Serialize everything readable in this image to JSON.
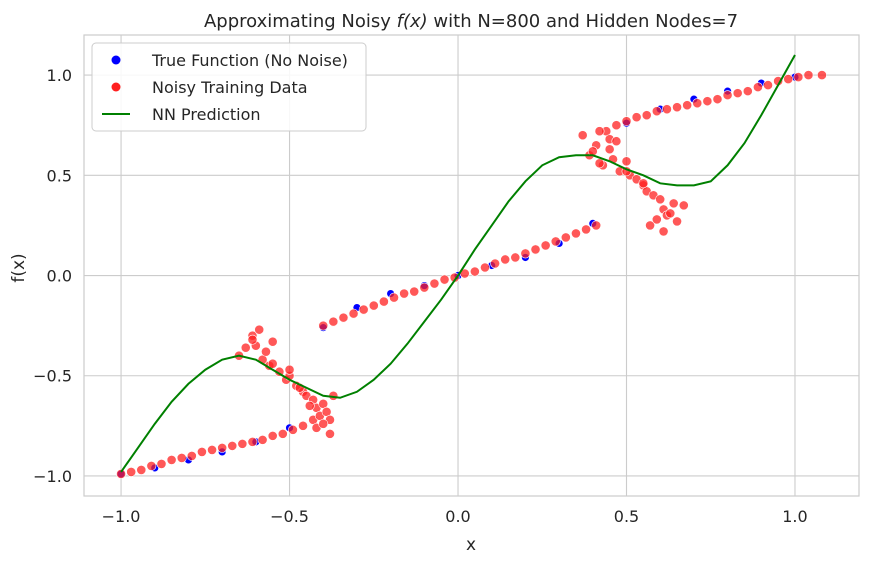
{
  "chart_data": {
    "type": "scatter",
    "title_prefix": "Approximating Noisy ",
    "title_math": "f(x)",
    "title_suffix": " with N=800 and Hidden Nodes=7",
    "xlabel": "x",
    "ylabel": "f(x)",
    "xlim": [
      -1.11,
      1.19
    ],
    "ylim": [
      -1.1,
      1.2
    ],
    "xticks": [
      -1.0,
      -0.5,
      0.0,
      0.5,
      1.0
    ],
    "xtick_labels": [
      "−1.0",
      "−0.5",
      "0.0",
      "0.5",
      "1.0"
    ],
    "yticks": [
      -1.0,
      -0.5,
      0.0,
      0.5,
      1.0
    ],
    "ytick_labels": [
      "−1.0",
      "−0.5",
      "0.0",
      "0.5",
      "1.0"
    ],
    "grid": true,
    "legend_position": "top-left",
    "legend": [
      {
        "label": "True Function (No Noise)",
        "kind": "dot",
        "color": "#0000ff"
      },
      {
        "label": "Noisy Training Data",
        "kind": "dot",
        "color": "#ff2020"
      },
      {
        "label": "NN Prediction",
        "kind": "line",
        "color": "#008000"
      }
    ],
    "series": [
      {
        "name": "True Function (No Noise)",
        "kind": "scatter",
        "color": "#0000ff",
        "x": [
          -1.0,
          -0.9,
          -0.8,
          -0.7,
          -0.6,
          -0.5,
          -0.4,
          -0.3,
          -0.2,
          -0.1,
          0.0,
          0.1,
          0.2,
          0.3,
          0.4,
          0.5,
          0.6,
          0.7,
          0.8,
          0.9,
          1.0
        ],
        "y": [
          -0.99,
          -0.96,
          -0.92,
          -0.88,
          -0.83,
          -0.76,
          -0.26,
          -0.16,
          -0.09,
          -0.05,
          0.0,
          0.05,
          0.09,
          0.16,
          0.26,
          0.76,
          0.83,
          0.88,
          0.92,
          0.96,
          0.99
        ]
      },
      {
        "name": "Noisy Training Data",
        "kind": "scatter",
        "color": "#ff2020",
        "x": [
          -1.0,
          -0.97,
          -0.94,
          -0.91,
          -0.88,
          -0.85,
          -0.82,
          -0.79,
          -0.76,
          -0.73,
          -0.7,
          -0.67,
          -0.64,
          -0.61,
          -0.58,
          -0.55,
          -0.52,
          -0.49,
          -0.46,
          -0.43,
          -0.4,
          -0.37,
          -0.34,
          -0.31,
          -0.28,
          -0.25,
          -0.22,
          -0.19,
          -0.16,
          -0.13,
          -0.1,
          -0.07,
          -0.04,
          -0.01,
          0.02,
          0.05,
          0.08,
          0.11,
          0.14,
          0.17,
          0.2,
          0.23,
          0.26,
          0.29,
          0.32,
          0.35,
          0.38,
          0.41,
          0.44,
          0.47,
          0.5,
          0.53,
          0.56,
          0.59,
          0.62,
          0.65,
          0.68,
          0.71,
          0.74,
          0.77,
          0.8,
          0.83,
          0.86,
          0.89,
          0.92,
          0.95,
          0.98,
          1.01,
          1.04,
          1.08,
          -0.65,
          -0.63,
          -0.61,
          -0.6,
          -0.58,
          -0.56,
          -0.55,
          -0.53,
          -0.51,
          -0.5,
          -0.48,
          -0.46,
          -0.45,
          -0.43,
          -0.42,
          -0.41,
          -0.4,
          -0.39,
          -0.38,
          -0.37,
          -0.61,
          -0.59,
          -0.57,
          -0.55,
          -0.5,
          -0.47,
          -0.44,
          -0.42,
          -0.4,
          -0.38,
          0.37,
          0.39,
          0.41,
          0.42,
          0.43,
          0.45,
          0.46,
          0.48,
          0.5,
          0.51,
          0.53,
          0.55,
          0.56,
          0.58,
          0.6,
          0.61,
          0.62,
          0.64,
          0.65,
          0.67,
          0.4,
          0.42,
          0.45,
          0.47,
          0.5,
          0.55,
          0.57,
          0.59,
          0.61,
          0.63
        ],
        "y": [
          -0.99,
          -0.98,
          -0.97,
          -0.95,
          -0.94,
          -0.92,
          -0.91,
          -0.9,
          -0.88,
          -0.87,
          -0.86,
          -0.85,
          -0.84,
          -0.83,
          -0.82,
          -0.8,
          -0.79,
          -0.77,
          -0.75,
          -0.72,
          -0.25,
          -0.23,
          -0.21,
          -0.19,
          -0.17,
          -0.15,
          -0.13,
          -0.11,
          -0.09,
          -0.08,
          -0.06,
          -0.04,
          -0.02,
          -0.01,
          0.01,
          0.02,
          0.04,
          0.06,
          0.08,
          0.09,
          0.11,
          0.13,
          0.15,
          0.17,
          0.19,
          0.21,
          0.23,
          0.25,
          0.72,
          0.75,
          0.77,
          0.79,
          0.8,
          0.82,
          0.83,
          0.84,
          0.85,
          0.86,
          0.87,
          0.88,
          0.9,
          0.91,
          0.92,
          0.94,
          0.95,
          0.97,
          0.98,
          0.99,
          1.0,
          1.0,
          -0.4,
          -0.36,
          -0.3,
          -0.35,
          -0.42,
          -0.45,
          -0.33,
          -0.48,
          -0.52,
          -0.5,
          -0.55,
          -0.58,
          -0.6,
          -0.62,
          -0.66,
          -0.7,
          -0.64,
          -0.68,
          -0.72,
          -0.6,
          -0.32,
          -0.27,
          -0.38,
          -0.44,
          -0.47,
          -0.56,
          -0.65,
          -0.76,
          -0.74,
          -0.79,
          0.7,
          0.6,
          0.65,
          0.72,
          0.55,
          0.68,
          0.58,
          0.52,
          0.57,
          0.5,
          0.48,
          0.45,
          0.42,
          0.4,
          0.38,
          0.33,
          0.3,
          0.36,
          0.27,
          0.35,
          0.62,
          0.56,
          0.63,
          0.67,
          0.52,
          0.46,
          0.25,
          0.28,
          0.22,
          0.31
        ]
      },
      {
        "name": "NN Prediction",
        "kind": "line",
        "color": "#008000",
        "x": [
          -1.0,
          -0.95,
          -0.9,
          -0.85,
          -0.8,
          -0.75,
          -0.7,
          -0.65,
          -0.6,
          -0.55,
          -0.5,
          -0.45,
          -0.4,
          -0.35,
          -0.3,
          -0.25,
          -0.2,
          -0.15,
          -0.1,
          -0.05,
          0.0,
          0.05,
          0.1,
          0.15,
          0.2,
          0.25,
          0.3,
          0.35,
          0.4,
          0.45,
          0.5,
          0.55,
          0.6,
          0.65,
          0.7,
          0.75,
          0.8,
          0.85,
          0.9,
          0.95,
          1.0
        ],
        "y": [
          -0.98,
          -0.86,
          -0.74,
          -0.63,
          -0.54,
          -0.47,
          -0.42,
          -0.4,
          -0.42,
          -0.47,
          -0.52,
          -0.56,
          -0.6,
          -0.61,
          -0.58,
          -0.52,
          -0.44,
          -0.34,
          -0.23,
          -0.12,
          0.0,
          0.13,
          0.25,
          0.37,
          0.47,
          0.55,
          0.59,
          0.6,
          0.6,
          0.57,
          0.53,
          0.5,
          0.46,
          0.45,
          0.45,
          0.47,
          0.55,
          0.66,
          0.8,
          0.95,
          1.1
        ]
      }
    ]
  }
}
